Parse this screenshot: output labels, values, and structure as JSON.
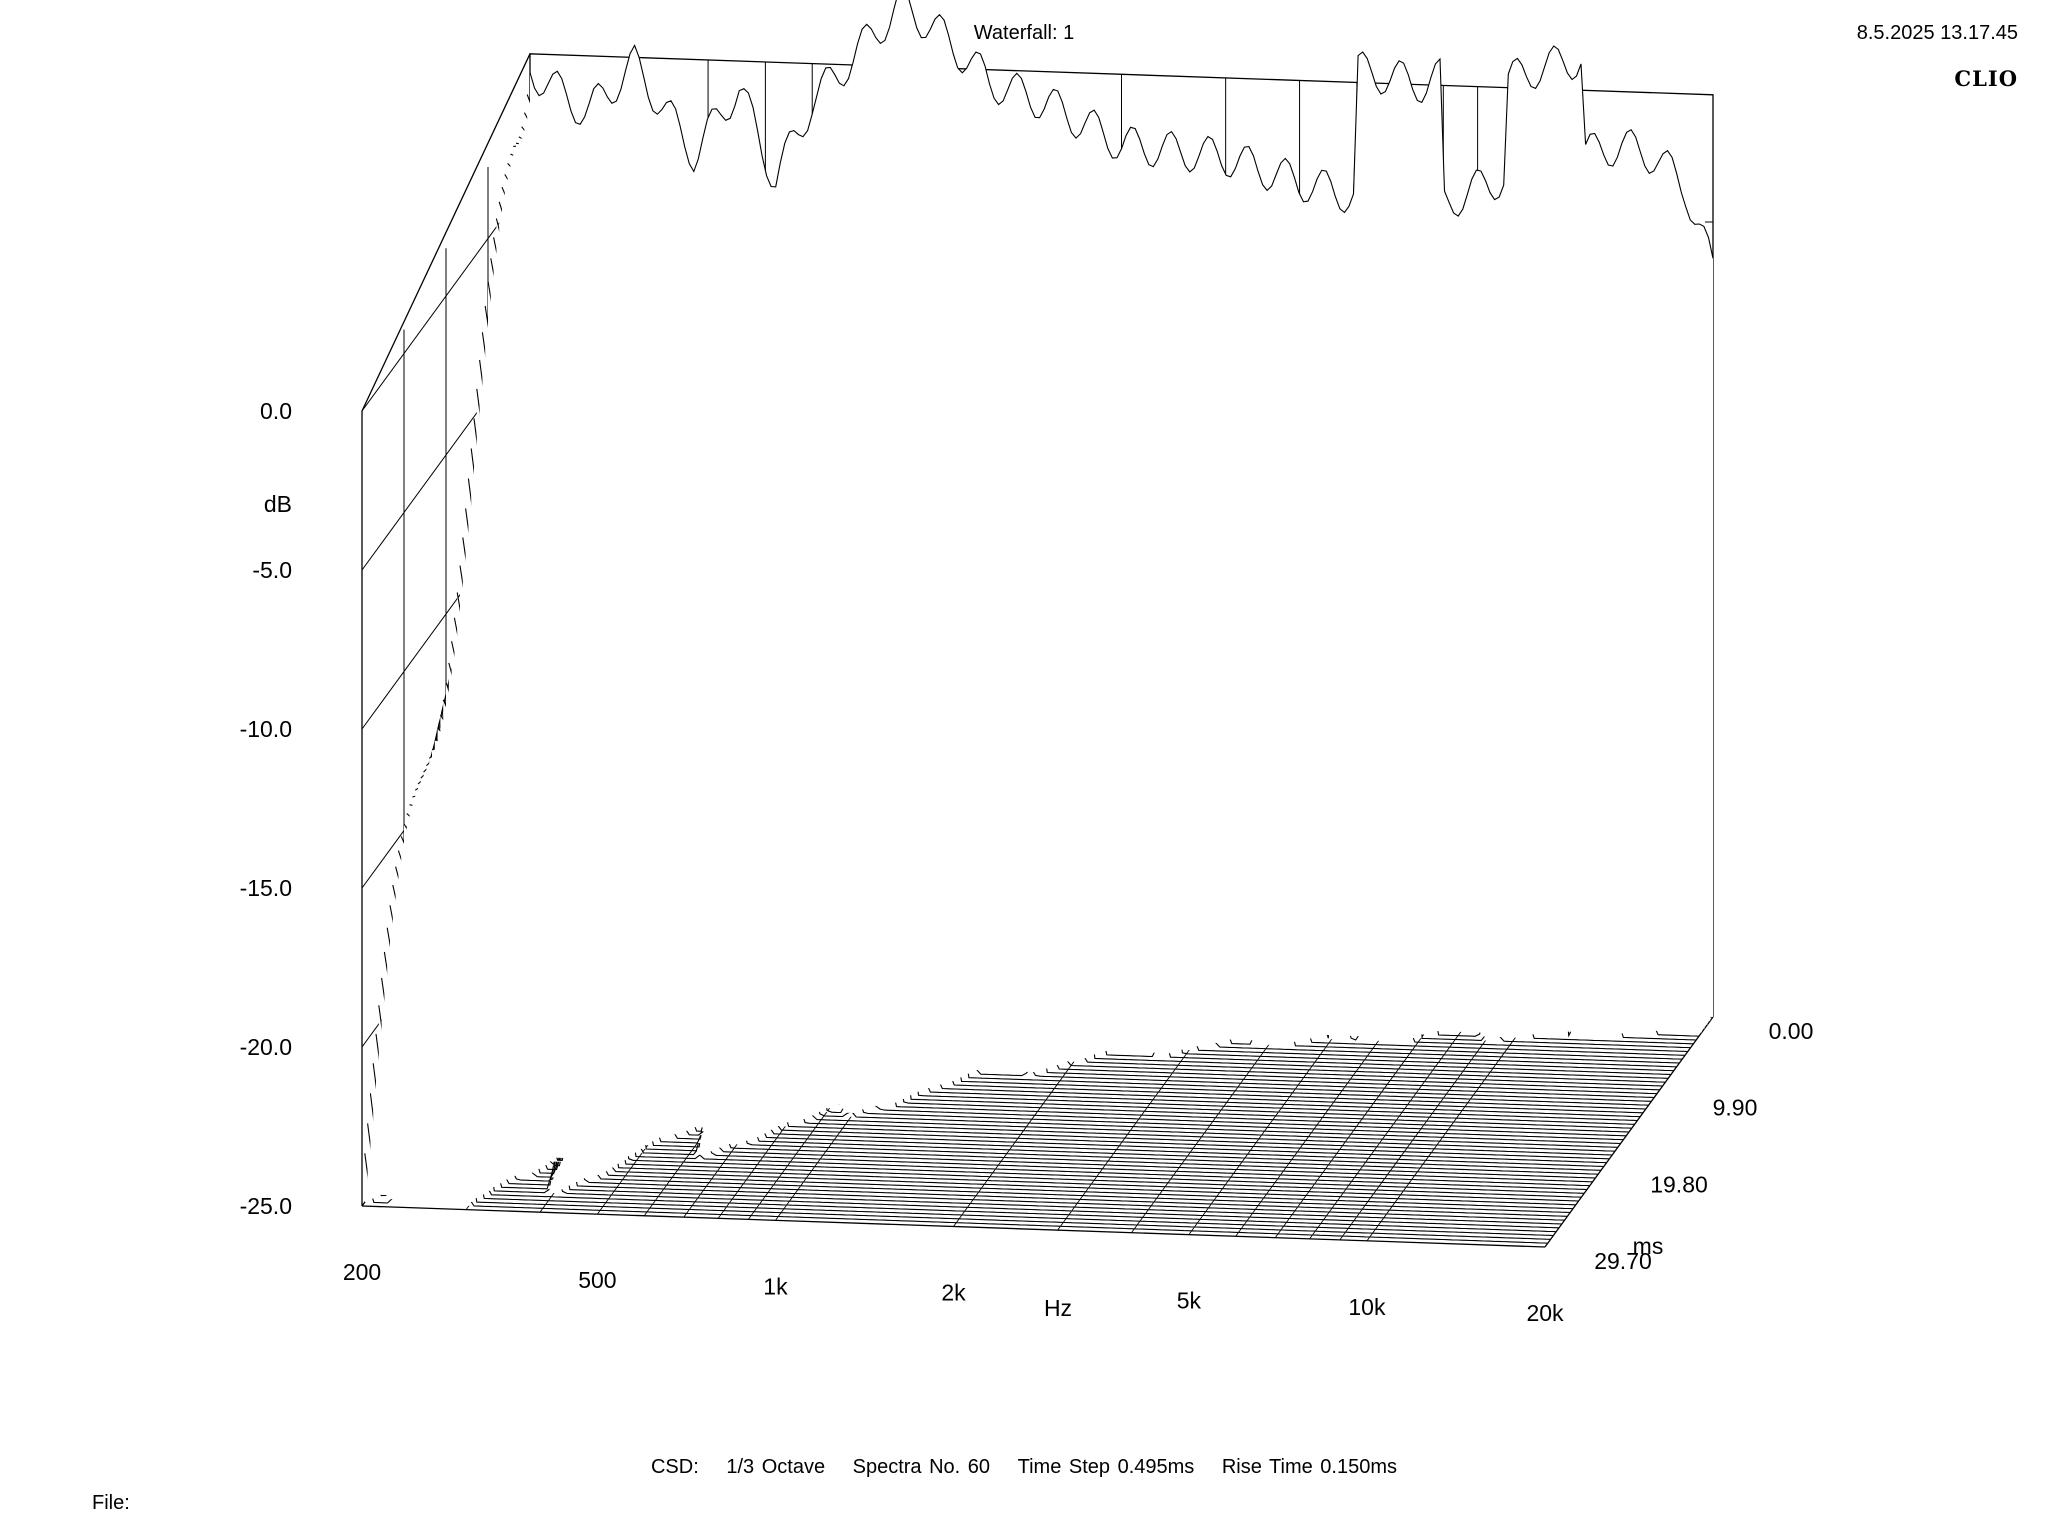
{
  "header": {
    "title": "Waterfall: 1",
    "timestamp": "8.5.2025 13.17.45",
    "brand": "CLIO"
  },
  "footer": {
    "label": "CSD:",
    "smoothing": "1/3 Octave",
    "spectra": "Spectra No. 60",
    "time_step": "Time Step 0.495ms",
    "rise_time": "Rise Time 0.150ms",
    "file_label": "File:"
  },
  "chart_data": {
    "type": "waterfall",
    "title": "Waterfall: 1",
    "xlabel": "Hz",
    "ylabel": "dB",
    "zlabel": "ms",
    "x_scale": "log",
    "xlim": [
      200,
      20000
    ],
    "ylim": [
      -25,
      0
    ],
    "zlim": [
      0,
      29.7
    ],
    "x_ticks": [
      {
        "value": 200,
        "label": "200"
      },
      {
        "value": 500,
        "label": "500"
      },
      {
        "value": 1000,
        "label": "1k"
      },
      {
        "value": 2000,
        "label": "2k"
      },
      {
        "value": 5000,
        "label": "5k"
      },
      {
        "value": 10000,
        "label": "10k"
      },
      {
        "value": 20000,
        "label": "20k"
      }
    ],
    "y_ticks": [
      {
        "value": 0,
        "label": "0.0"
      },
      {
        "value": -5,
        "label": "-5.0"
      },
      {
        "value": -10,
        "label": "-10.0"
      },
      {
        "value": -15,
        "label": "-15.0"
      },
      {
        "value": -20,
        "label": "-20.0"
      },
      {
        "value": -25,
        "label": "-25.0"
      }
    ],
    "z_ticks": [
      {
        "value": 0,
        "label": "0.00"
      },
      {
        "value": 9.9,
        "label": "9.90"
      },
      {
        "value": 19.8,
        "label": "19.80"
      },
      {
        "value": 29.7,
        "label": "29.70"
      }
    ],
    "spectra_count": 60,
    "time_step_ms": 0.495,
    "rise_time_ms": 0.15,
    "initial_response": [
      {
        "f": 200,
        "db": 3.5
      },
      {
        "f": 250,
        "db": 2.2
      },
      {
        "f": 300,
        "db": 3.8
      },
      {
        "f": 380,
        "db": 1.0
      },
      {
        "f": 450,
        "db": 3.2
      },
      {
        "f": 520,
        "db": 0.3
      },
      {
        "f": 600,
        "db": 2.8
      },
      {
        "f": 700,
        "db": 4.2
      },
      {
        "f": 850,
        "db": 6.0
      },
      {
        "f": 1000,
        "db": 5.0
      },
      {
        "f": 1200,
        "db": 3.6
      },
      {
        "f": 1500,
        "db": 3.0
      },
      {
        "f": 2000,
        "db": 1.8
      },
      {
        "f": 3000,
        "db": 1.5
      },
      {
        "f": 4000,
        "db": 0.8
      },
      {
        "f": 5000,
        "db": 0.4
      },
      {
        "f": 6500,
        "db": 0.0
      },
      {
        "f": 8000,
        "db": 0.8
      },
      {
        "f": 10000,
        "db": 1.6
      },
      {
        "f": 12000,
        "db": 2.0
      },
      {
        "f": 14000,
        "db": 2.3
      },
      {
        "f": 16000,
        "db": 2.0
      },
      {
        "f": 18000,
        "db": 1.0
      },
      {
        "f": 20000,
        "db": -1.5
      }
    ]
  }
}
